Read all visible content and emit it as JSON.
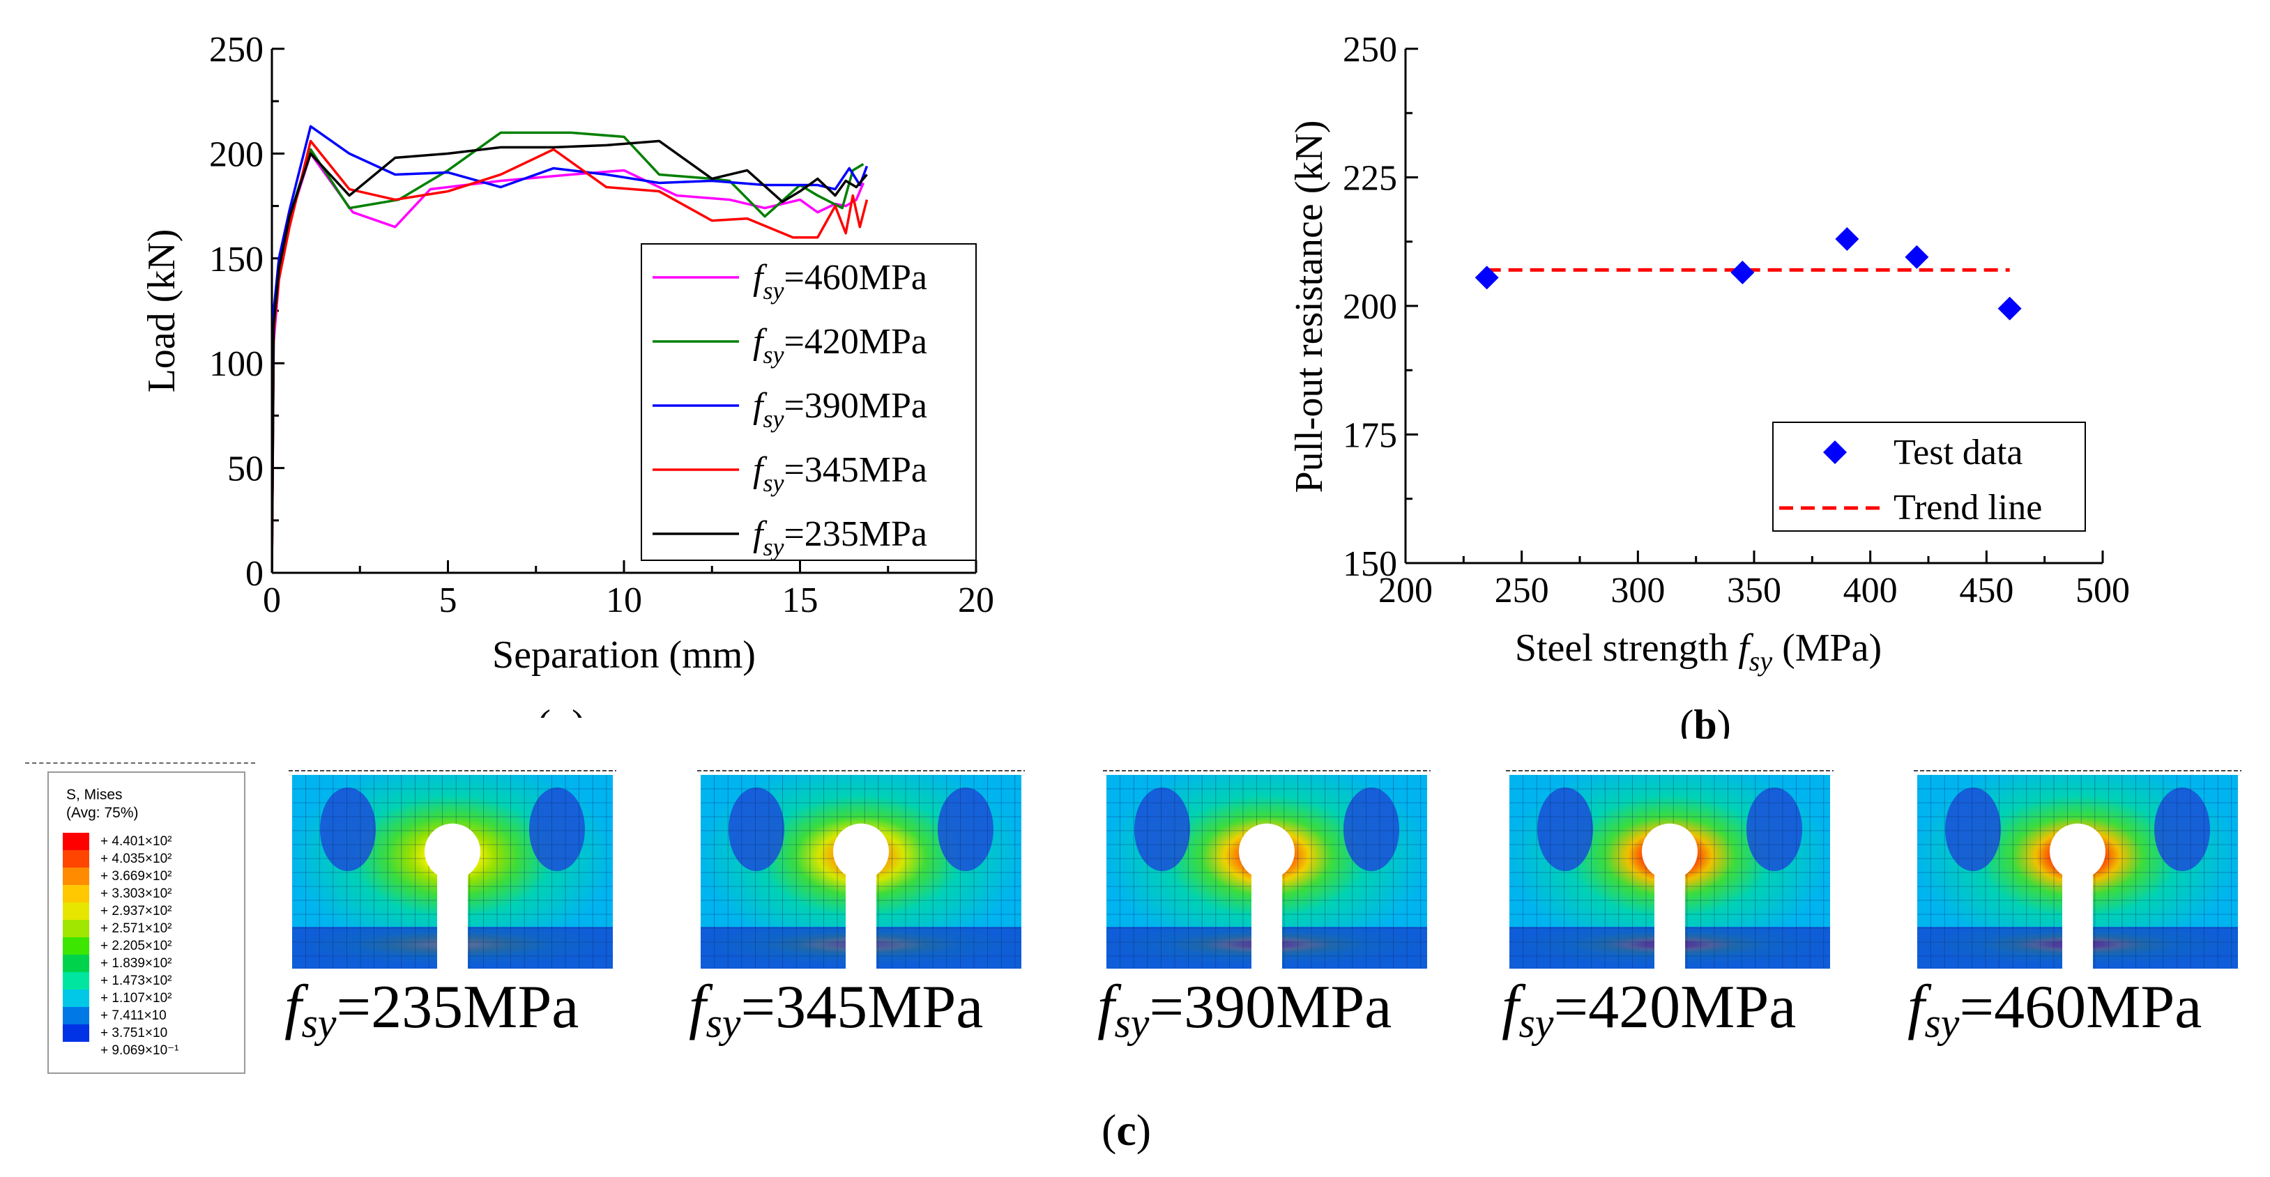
{
  "chart_data": [
    {
      "panel": "(a)",
      "type": "line",
      "xlabel": "Separation (mm)",
      "ylabel": "Load (kN)",
      "xlim": [
        0,
        20
      ],
      "ylim": [
        0,
        250
      ],
      "xticks": [
        "0",
        "5",
        "10",
        "15",
        "20"
      ],
      "yticks": [
        "0",
        "50",
        "100",
        "150",
        "200",
        "250"
      ],
      "legend_position": "bottom-right",
      "series": [
        {
          "name": "fsy=460MPa",
          "label_main": "=460MPa",
          "color": "#ff00ff",
          "x": [
            0,
            0.05,
            0.2,
            0.5,
            1.1,
            2.3,
            3.5,
            4.5,
            6.5,
            8.5,
            10,
            11.5,
            13,
            14,
            15,
            15.5,
            16,
            16.3,
            16.6,
            16.8
          ],
          "y": [
            0,
            110,
            140,
            168,
            200,
            172,
            165,
            183,
            187,
            190,
            192,
            180,
            178,
            174,
            178,
            172,
            176,
            175,
            178,
            186
          ]
        },
        {
          "name": "fsy=420MPa",
          "label_main": "=420MPa",
          "color": "#008000",
          "x": [
            0,
            0.05,
            0.2,
            0.5,
            1.1,
            2.2,
            3.6,
            5,
            6.5,
            8.5,
            10,
            11,
            12.5,
            13,
            14,
            15,
            15.5,
            16.2,
            16.5,
            16.8
          ],
          "y": [
            0,
            120,
            145,
            170,
            202,
            174,
            178,
            192,
            210,
            210,
            208,
            190,
            188,
            187,
            170,
            185,
            180,
            174,
            192,
            195
          ]
        },
        {
          "name": "fsy=390MPa",
          "label_main": "=390MPa",
          "color": "#0000ff",
          "x": [
            0,
            0.05,
            0.2,
            0.5,
            1.1,
            2.2,
            3.5,
            5,
            6.5,
            8,
            9.5,
            11,
            12.5,
            14,
            15,
            15.5,
            16,
            16.4,
            16.7,
            16.9
          ],
          "y": [
            0,
            125,
            150,
            173,
            213,
            200,
            190,
            191,
            184,
            193,
            190,
            186,
            187,
            185,
            185,
            185,
            183,
            193,
            185,
            194
          ]
        },
        {
          "name": "fsy=345MPa",
          "label_main": "=345MPa",
          "color": "#ff0000",
          "x": [
            0,
            0.05,
            0.2,
            0.5,
            1.1,
            2.2,
            3.5,
            5,
            6.5,
            8,
            9.5,
            11,
            12.5,
            13.5,
            14.8,
            15.5,
            16,
            16.3,
            16.5,
            16.7,
            16.9
          ],
          "y": [
            0,
            115,
            140,
            165,
            206,
            183,
            178,
            182,
            190,
            202,
            184,
            182,
            168,
            169,
            160,
            160,
            175,
            162,
            180,
            165,
            178
          ]
        },
        {
          "name": "fsy=235MPa",
          "label_main": "=235MPa",
          "color": "#000000",
          "x": [
            0,
            0.05,
            0.2,
            0.5,
            1.1,
            2.2,
            3.5,
            5,
            6.5,
            8,
            9.5,
            11,
            12.5,
            13.5,
            14.5,
            15,
            15.5,
            16,
            16.3,
            16.6,
            16.9
          ],
          "y": [
            0,
            118,
            145,
            170,
            200,
            180,
            198,
            200,
            203,
            203,
            204,
            206,
            188,
            192,
            177,
            182,
            188,
            180,
            187,
            184,
            190
          ]
        }
      ]
    },
    {
      "panel": "(b)",
      "type": "scatter",
      "xlabel_main": "Steel strength ",
      "xlabel_var": "f",
      "xlabel_sub": "sy",
      "xlabel_unit": " (MPa)",
      "ylabel": "Pull-out resistance (kN)",
      "xlim": [
        200,
        500
      ],
      "ylim": [
        150,
        250
      ],
      "xticks": [
        "200",
        "250",
        "300",
        "350",
        "400",
        "450",
        "500"
      ],
      "yticks": [
        "150",
        "175",
        "200",
        "225",
        "250"
      ],
      "legend_position": "bottom-right",
      "series": [
        {
          "name": "Test data",
          "color": "#0000ff",
          "marker": "diamond",
          "x": [
            235,
            345,
            390,
            420,
            460
          ],
          "y": [
            205.5,
            206.5,
            213,
            209.5,
            199.5
          ]
        },
        {
          "name": "Trend line",
          "color": "#ff0000",
          "style": "dashed",
          "x": [
            235,
            460
          ],
          "y": [
            207,
            207
          ]
        }
      ]
    }
  ],
  "panels": {
    "a": "(a)",
    "b": "(b)",
    "c": "(c)"
  },
  "contour": {
    "legend_title": "S, Mises",
    "legend_avg": "(Avg: 75%)",
    "legend_values": [
      "+ 4.401×10²",
      "+ 4.035×10²",
      "+ 3.669×10²",
      "+ 3.303×10²",
      "+ 2.937×10²",
      "+ 2.571×10²",
      "+ 2.205×10²",
      "+ 1.839×10²",
      "+ 1.473×10²",
      "+ 1.107×10²",
      "+ 7.411×10",
      "+ 3.751×10",
      "+ 9.069×10⁻¹"
    ],
    "legend_colors": [
      "#ff0000",
      "#ff4500",
      "#ff8c00",
      "#ffc800",
      "#e6e600",
      "#a0e600",
      "#3ce600",
      "#00d24b",
      "#00e6a0",
      "#00c8e6",
      "#0078e6",
      "#0032e6"
    ],
    "cases": [
      {
        "label_main": "=235MPa",
        "intensity": 0
      },
      {
        "label_main": "=345MPa",
        "intensity": 1
      },
      {
        "label_main": "=390MPa",
        "intensity": 2
      },
      {
        "label_main": "=420MPa",
        "intensity": 3
      },
      {
        "label_main": "=460MPa",
        "intensity": 3
      }
    ]
  }
}
